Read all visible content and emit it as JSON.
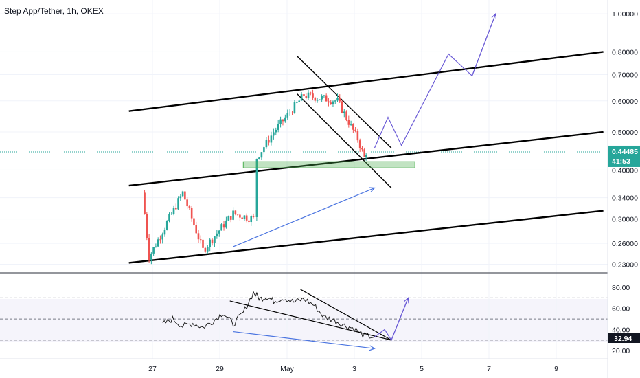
{
  "chart_data": [
    {
      "type": "candlestick",
      "title": "Step App/Tether, 1h, OKEX",
      "scale": "log",
      "ylim": [
        0.225,
        1.05
      ],
      "y_ticks": [
        "1.00000",
        "0.80000",
        "0.70000",
        "0.60000",
        "0.50000",
        "0.40000",
        "0.34000",
        "0.30000",
        "0.26000",
        "0.23000"
      ],
      "y_tick_values": [
        1.0,
        0.8,
        0.7,
        0.6,
        0.5,
        0.4,
        0.34,
        0.3,
        0.26,
        0.23
      ],
      "x_ticks": [
        "27",
        "29",
        "May",
        "3",
        "5",
        "7",
        "9"
      ],
      "x_tick_values": [
        0,
        2,
        4,
        6,
        8,
        10,
        12
      ],
      "last_price": "0.44485",
      "countdown": "41:53",
      "colors": {
        "up": "#26a69a",
        "down": "#ef5350",
        "badge": "#26a69a",
        "projection": "#6b5bd6",
        "arrow": "#4a74e0",
        "zone": "#4caf50"
      },
      "key_points": [
        {
          "x": -0.3,
          "y": 0.35
        },
        {
          "x": -0.1,
          "y": 0.24
        },
        {
          "x": 0.9,
          "y": 0.35
        },
        {
          "x": 1.5,
          "y": 0.25
        },
        {
          "x": 2.4,
          "y": 0.31
        },
        {
          "x": 3.0,
          "y": 0.3
        },
        {
          "x": 3.1,
          "y": 0.43
        },
        {
          "x": 3.6,
          "y": 0.5
        },
        {
          "x": 4.5,
          "y": 0.62
        },
        {
          "x": 5.5,
          "y": 0.6
        },
        {
          "x": 6.1,
          "y": 0.48
        },
        {
          "x": 6.3,
          "y": 0.43
        },
        {
          "x": 6.35,
          "y": 0.445
        }
      ],
      "trend_lines": [
        {
          "name": "channel-upper",
          "x": [
            -0.7,
            13.4
          ],
          "y": [
            0.565,
            0.8
          ]
        },
        {
          "name": "channel-middle",
          "x": [
            -0.7,
            13.4
          ],
          "y": [
            0.365,
            0.5
          ]
        },
        {
          "name": "channel-lower",
          "x": [
            -0.7,
            13.4
          ],
          "y": [
            0.232,
            0.315
          ]
        },
        {
          "name": "falling-wedge-upper",
          "x": [
            4.3,
            7.1
          ],
          "y": [
            0.78,
            0.455
          ]
        },
        {
          "name": "falling-wedge-lower",
          "x": [
            4.3,
            7.1
          ],
          "y": [
            0.625,
            0.36
          ]
        }
      ],
      "support_zone": {
        "x": [
          2.7,
          7.8
        ],
        "y": [
          0.405,
          0.42
        ]
      },
      "arrow": {
        "x": [
          2.4,
          6.6
        ],
        "y": [
          0.255,
          0.36
        ]
      },
      "projection_path": {
        "x": [
          6.6,
          7.0,
          7.4,
          8.8,
          9.5,
          10.2
        ],
        "y": [
          0.455,
          0.545,
          0.462,
          0.79,
          0.695,
          1.0
        ]
      }
    },
    {
      "type": "line",
      "title": "",
      "ylim": [
        13,
        93
      ],
      "y_ticks": [
        "80.00",
        "60.00",
        "40.00",
        "20.00"
      ],
      "y_tick_values": [
        80,
        60,
        40,
        20
      ],
      "levels": [
        70,
        50,
        30
      ],
      "last_value": "32.94",
      "series": [
        {
          "x": [
            0.3,
            0.6,
            0.9,
            1.2,
            1.5,
            1.8,
            2.1,
            2.4,
            2.7,
            3.0,
            3.2,
            3.4,
            3.6,
            3.9,
            4.2,
            4.5,
            4.8,
            5.1,
            5.4,
            5.7,
            6.0,
            6.3,
            6.6
          ],
          "values": [
            45,
            50,
            43,
            46,
            42,
            48,
            56,
            45,
            56,
            75,
            69,
            71,
            67,
            70,
            66,
            69,
            63,
            52,
            49,
            44,
            41,
            34,
            33
          ]
        }
      ],
      "trend_lines": [
        {
          "name": "rsi-upper",
          "x": [
            4.4,
            7.1
          ],
          "y": [
            78,
            30
          ]
        },
        {
          "name": "rsi-lower",
          "x": [
            2.3,
            7.1
          ],
          "y": [
            67,
            30
          ]
        }
      ],
      "arrow": {
        "x": [
          2.4,
          6.6
        ],
        "y": [
          38,
          22
        ]
      },
      "projection_path": {
        "x": [
          6.6,
          6.9,
          7.1,
          7.6
        ],
        "y": [
          33,
          40,
          30,
          70
        ]
      }
    }
  ]
}
